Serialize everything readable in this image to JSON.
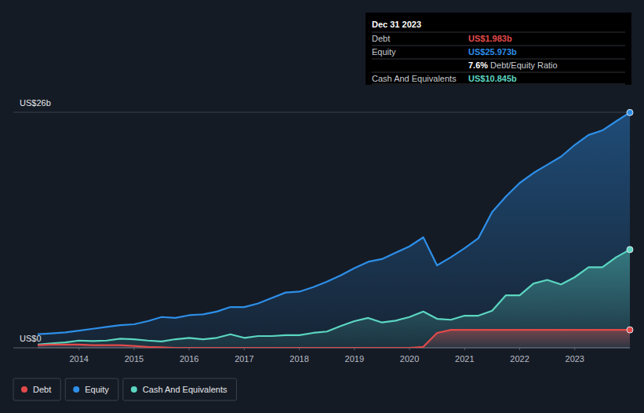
{
  "chart_data": {
    "type": "area",
    "x": [
      2013.25,
      2013.5,
      2013.75,
      2014,
      2014.25,
      2014.5,
      2014.75,
      2015,
      2015.25,
      2015.5,
      2015.75,
      2016,
      2016.25,
      2016.5,
      2016.75,
      2017,
      2017.25,
      2017.5,
      2017.75,
      2018,
      2018.25,
      2018.5,
      2018.75,
      2019,
      2019.25,
      2019.5,
      2019.75,
      2020,
      2020.25,
      2020.5,
      2020.75,
      2021,
      2021.25,
      2021.5,
      2021.75,
      2022,
      2022.25,
      2022.5,
      2022.75,
      2023,
      2023.25,
      2023.5,
      2023.75,
      2024
    ],
    "series": [
      {
        "name": "Debt",
        "color": "#e24a4a",
        "values": [
          0.3,
          0.35,
          0.35,
          0.35,
          0.3,
          0.3,
          0.3,
          0.2,
          0.1,
          0.05,
          0,
          0,
          0,
          0,
          0,
          0,
          0,
          0,
          0,
          0,
          0,
          0,
          0,
          0,
          0,
          0,
          0,
          0,
          0.1,
          1.65,
          1.98,
          1.98,
          1.98,
          1.98,
          1.98,
          1.98,
          1.98,
          1.98,
          1.98,
          1.98,
          1.98,
          1.98,
          1.98,
          1.983
        ]
      },
      {
        "name": "Equity",
        "color": "#2d8fe8",
        "values": [
          1.5,
          1.6,
          1.7,
          1.9,
          2.1,
          2.3,
          2.5,
          2.6,
          2.95,
          3.4,
          3.3,
          3.6,
          3.7,
          4.0,
          4.5,
          4.5,
          4.9,
          5.5,
          6.1,
          6.2,
          6.7,
          7.3,
          8.0,
          8.8,
          9.5,
          9.8,
          10.5,
          11.2,
          12.2,
          9.1,
          10.0,
          11.0,
          12.1,
          15.0,
          16.7,
          18.2,
          19.3,
          20.2,
          21.1,
          22.4,
          23.5,
          24.0,
          25.0,
          25.973
        ]
      },
      {
        "name": "Cash And Equivalents",
        "color": "#5bd6c1",
        "values": [
          0.35,
          0.5,
          0.6,
          0.8,
          0.75,
          0.8,
          1.0,
          0.95,
          0.8,
          0.7,
          0.95,
          1.1,
          0.95,
          1.1,
          1.5,
          1.1,
          1.3,
          1.3,
          1.4,
          1.4,
          1.65,
          1.8,
          2.4,
          2.95,
          3.3,
          2.8,
          3.0,
          3.4,
          4.0,
          3.2,
          3.1,
          3.55,
          3.55,
          4.1,
          5.8,
          5.8,
          7.1,
          7.5,
          7.0,
          7.8,
          8.9,
          8.9,
          10.0,
          10.845
        ]
      }
    ],
    "xlim": [
      2013.25,
      2024
    ],
    "xticks": [
      2014,
      2015,
      2016,
      2017,
      2018,
      2019,
      2020,
      2021,
      2022,
      2023
    ],
    "ylim": [
      0,
      26
    ],
    "yticks": [
      {
        "value": 0,
        "label": "US$0"
      },
      {
        "value": 26,
        "label": "US$26b"
      }
    ],
    "grid": true,
    "legend": "bottom-left",
    "tooltip": {
      "date": "Dec 31 2023",
      "rows": [
        {
          "label": "Debt",
          "value": "US$1.983b"
        },
        {
          "label": "Equity",
          "value": "US$25.973b"
        },
        {
          "label": "Debt/Equity Ratio",
          "value": "7.6%"
        },
        {
          "label": "Cash And Equivalents",
          "value": "US$10.845b"
        }
      ]
    }
  }
}
